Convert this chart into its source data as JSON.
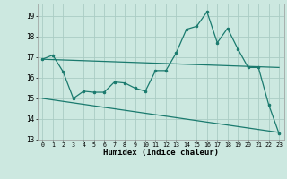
{
  "title": "",
  "xlabel": "Humidex (Indice chaleur)",
  "bg_color": "#cce8e0",
  "grid_color": "#aaccC4",
  "line_color": "#1a7a6e",
  "xlim": [
    -0.5,
    23.5
  ],
  "ylim": [
    13,
    19.6
  ],
  "yticks": [
    13,
    14,
    15,
    16,
    17,
    18,
    19
  ],
  "xticks": [
    0,
    1,
    2,
    3,
    4,
    5,
    6,
    7,
    8,
    9,
    10,
    11,
    12,
    13,
    14,
    15,
    16,
    17,
    18,
    19,
    20,
    21,
    22,
    23
  ],
  "line1_x": [
    0,
    1,
    2,
    3,
    4,
    5,
    6,
    7,
    8,
    9,
    10,
    11,
    12,
    13,
    14,
    15,
    16,
    17,
    18,
    19,
    20,
    21,
    22,
    23
  ],
  "line1_y": [
    16.9,
    17.1,
    16.3,
    15.0,
    15.35,
    15.3,
    15.3,
    15.8,
    15.75,
    15.5,
    15.35,
    16.35,
    16.35,
    17.2,
    18.35,
    18.5,
    19.2,
    17.7,
    18.4,
    17.4,
    16.5,
    16.5,
    14.7,
    13.3
  ],
  "trend1_x": [
    0,
    23
  ],
  "trend1_y": [
    16.9,
    16.5
  ],
  "trend2_x": [
    0,
    23
  ],
  "trend2_y": [
    15.0,
    13.35
  ]
}
